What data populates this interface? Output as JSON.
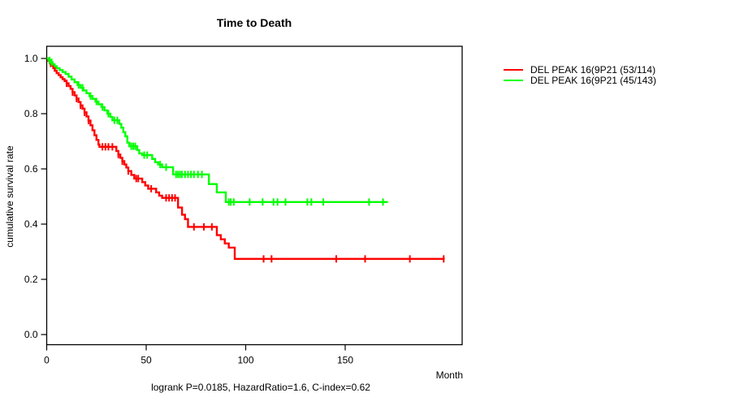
{
  "chart_data": {
    "type": "line",
    "subtype": "kaplan-meier-step",
    "title": "Time to Death",
    "xlabel": "Month",
    "ylabel": "cumulative survival rate",
    "caption": "logrank P=0.0185, HazardRatio=1.6, C-index=0.62",
    "xlim": [
      0,
      209
    ],
    "ylim": [
      0,
      1
    ],
    "grid": false,
    "legend_position": "right-outside",
    "frame_color": "#000000",
    "x_ticks": {
      "values": [
        0,
        50,
        100,
        150
      ],
      "labels": [
        "0",
        "50",
        "100",
        "150"
      ]
    },
    "y_ticks": {
      "values": [
        0,
        0.2,
        0.4,
        0.6,
        0.8,
        1.0
      ],
      "labels": [
        "0.0",
        "0.2",
        "0.4",
        "0.6",
        "0.8",
        "1.0"
      ]
    },
    "series": [
      {
        "name": "DEL PEAK 16(9P21 (53/114)",
        "color": "#ff0000",
        "events_total": "53/114",
        "end_month": 200,
        "steps": [
          [
            0,
            1.0
          ],
          [
            0.8,
            0.991
          ],
          [
            1.6,
            0.982
          ],
          [
            2.5,
            0.974
          ],
          [
            3.3,
            0.965
          ],
          [
            4.1,
            0.956
          ],
          [
            5,
            0.947
          ],
          [
            6,
            0.94
          ],
          [
            7,
            0.932
          ],
          [
            8,
            0.925
          ],
          [
            9,
            0.918
          ],
          [
            10,
            0.91
          ],
          [
            11,
            0.9
          ],
          [
            12,
            0.89
          ],
          [
            13,
            0.878
          ],
          [
            14,
            0.866
          ],
          [
            15,
            0.855
          ],
          [
            16,
            0.842
          ],
          [
            17,
            0.83
          ],
          [
            18,
            0.818
          ],
          [
            19,
            0.805
          ],
          [
            20,
            0.79
          ],
          [
            21,
            0.775
          ],
          [
            22,
            0.758
          ],
          [
            23,
            0.74
          ],
          [
            24,
            0.722
          ],
          [
            25,
            0.705
          ],
          [
            26,
            0.688
          ],
          [
            26.5,
            0.68
          ],
          [
            35,
            0.665
          ],
          [
            36,
            0.652
          ],
          [
            37,
            0.64
          ],
          [
            38,
            0.628
          ],
          [
            39,
            0.616
          ],
          [
            40,
            0.605
          ],
          [
            41,
            0.592
          ],
          [
            42.5,
            0.578
          ],
          [
            44,
            0.565
          ],
          [
            48,
            0.552
          ],
          [
            49.5,
            0.54
          ],
          [
            51,
            0.528
          ],
          [
            55,
            0.515
          ],
          [
            56.5,
            0.503
          ],
          [
            58,
            0.495
          ],
          [
            66,
            0.46
          ],
          [
            68,
            0.434
          ],
          [
            69.5,
            0.418
          ],
          [
            71,
            0.39
          ],
          [
            85.5,
            0.36
          ],
          [
            87.5,
            0.345
          ],
          [
            89.5,
            0.33
          ],
          [
            91.5,
            0.315
          ],
          [
            94.5,
            0.274
          ]
        ],
        "censor_months": [
          2,
          4,
          10,
          13,
          15,
          17,
          19,
          21,
          28,
          29.5,
          31,
          33,
          36,
          38,
          41,
          45,
          46,
          52.5,
          60,
          61.5,
          63,
          64.5,
          74,
          79,
          83,
          109,
          113,
          145.5,
          160,
          182.5,
          199.5
        ]
      },
      {
        "name": "DEL PEAK 16(9P21 (45/143)",
        "color": "#00ff00",
        "events_total": "45/143",
        "end_month": 171.5,
        "steps": [
          [
            0,
            1.0
          ],
          [
            1,
            0.993
          ],
          [
            2,
            0.986
          ],
          [
            3,
            0.979
          ],
          [
            4,
            0.972
          ],
          [
            5,
            0.965
          ],
          [
            6.5,
            0.958
          ],
          [
            8,
            0.951
          ],
          [
            9.5,
            0.944
          ],
          [
            11,
            0.934
          ],
          [
            12.5,
            0.924
          ],
          [
            14,
            0.914
          ],
          [
            15.5,
            0.904
          ],
          [
            17,
            0.894
          ],
          [
            18.5,
            0.884
          ],
          [
            20,
            0.874
          ],
          [
            21.5,
            0.864
          ],
          [
            23,
            0.854
          ],
          [
            24.5,
            0.844
          ],
          [
            26,
            0.834
          ],
          [
            27.5,
            0.824
          ],
          [
            29,
            0.812
          ],
          [
            30.5,
            0.8
          ],
          [
            32,
            0.788
          ],
          [
            33,
            0.776
          ],
          [
            36.5,
            0.763
          ],
          [
            37.5,
            0.749
          ],
          [
            38.5,
            0.733
          ],
          [
            39.5,
            0.718
          ],
          [
            40.5,
            0.695
          ],
          [
            41.5,
            0.682
          ],
          [
            45.5,
            0.668
          ],
          [
            46.5,
            0.656
          ],
          [
            48,
            0.65
          ],
          [
            53,
            0.636
          ],
          [
            54.5,
            0.624
          ],
          [
            56,
            0.616
          ],
          [
            58,
            0.606
          ],
          [
            63.5,
            0.58
          ],
          [
            81.5,
            0.545
          ],
          [
            85.5,
            0.515
          ],
          [
            90,
            0.48
          ]
        ],
        "censor_months": [
          1.5,
          2.5,
          16,
          18,
          22,
          25,
          28,
          31,
          34,
          35.5,
          42.5,
          43.5,
          44.5,
          49,
          50.5,
          57,
          60,
          65,
          66,
          67,
          68,
          69.5,
          71,
          72.5,
          74,
          76,
          78,
          91.5,
          92.5,
          94,
          102,
          108.5,
          114,
          116,
          120,
          131,
          133,
          139,
          162,
          169
        ]
      }
    ]
  }
}
